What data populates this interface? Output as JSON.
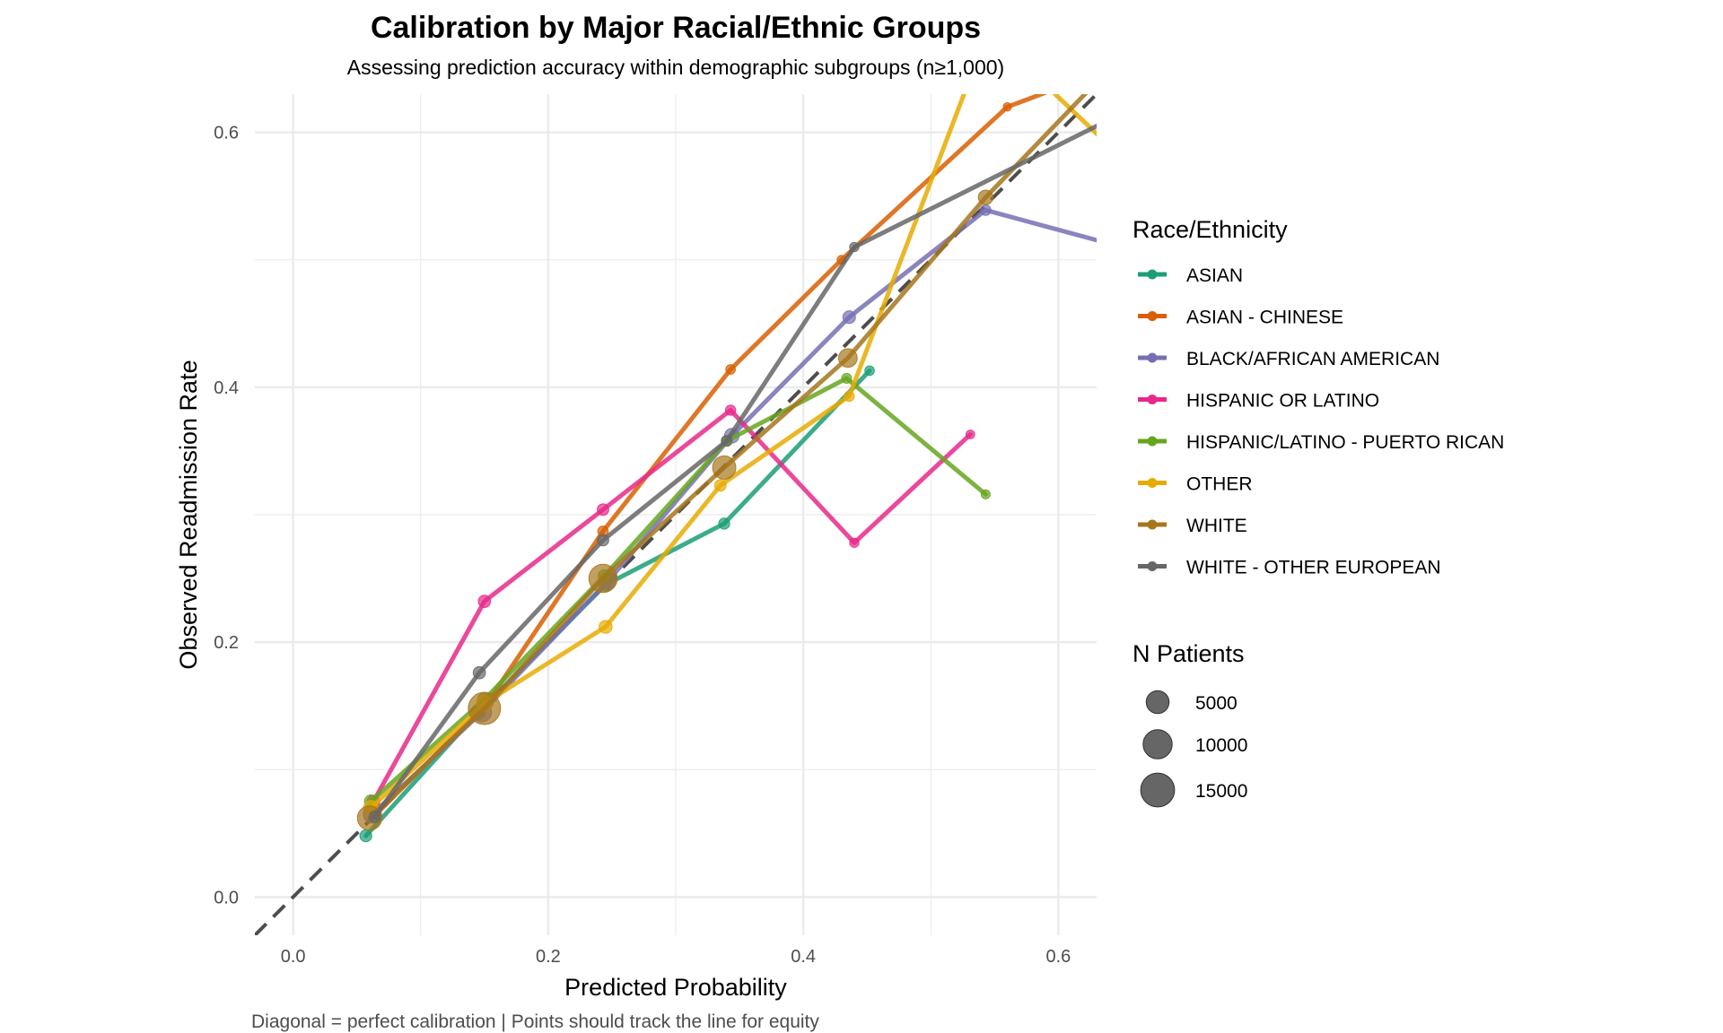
{
  "chart_data": {
    "type": "line",
    "title": "Calibration by Major Racial/Ethnic Groups",
    "subtitle": "Assessing prediction accuracy within demographic subgroups (n≥1,000)",
    "xlabel": "Predicted Probability",
    "ylabel": "Observed Readmission Rate",
    "caption": "Diagonal = perfect calibration | Points should track the line for equity",
    "xlim": [
      -0.03,
      0.63
    ],
    "ylim": [
      -0.03,
      0.63
    ],
    "x_ticks": [
      0.0,
      0.2,
      0.4,
      0.6
    ],
    "y_ticks": [
      0.0,
      0.2,
      0.4,
      0.6
    ],
    "x_tick_labels": [
      "0.0",
      "0.2",
      "0.4",
      "0.6"
    ],
    "y_tick_labels": [
      "0.0",
      "0.2",
      "0.4",
      "0.6"
    ],
    "grid": true,
    "reference_line": "diagonal y = x, dashed",
    "legend_color_title": "Race/Ethnicity",
    "legend_size_title": "N Patients",
    "legend_placement": "right",
    "size_legend": [
      {
        "label": "5000",
        "n": 5000
      },
      {
        "label": "10000",
        "n": 10000
      },
      {
        "label": "15000",
        "n": 15000
      }
    ],
    "series": [
      {
        "name": "ASIAN",
        "color": "#1b9e77",
        "points": [
          [
            0.057,
            0.048,
            600
          ],
          [
            0.145,
            0.145,
            1500
          ],
          [
            0.245,
            0.245,
            900
          ],
          [
            0.338,
            0.293,
            400
          ],
          [
            0.452,
            0.413,
            150
          ]
        ]
      },
      {
        "name": "ASIAN - CHINESE",
        "color": "#d95f02",
        "points": [
          [
            0.065,
            0.065,
            400
          ],
          [
            0.152,
            0.152,
            600
          ],
          [
            0.243,
            0.287,
            300
          ],
          [
            0.343,
            0.414,
            150
          ],
          [
            0.43,
            0.5,
            80
          ],
          [
            0.56,
            0.62,
            40
          ],
          [
            0.64,
            0.65,
            20
          ]
        ]
      },
      {
        "name": "BLACK/AFRICAN AMERICAN",
        "color": "#7570b3",
        "points": [
          [
            0.062,
            0.065,
            3000
          ],
          [
            0.148,
            0.145,
            4000
          ],
          [
            0.247,
            0.248,
            2500
          ],
          [
            0.344,
            0.362,
            1500
          ],
          [
            0.436,
            0.455,
            800
          ],
          [
            0.543,
            0.539,
            300
          ],
          [
            0.65,
            0.51,
            100
          ]
        ]
      },
      {
        "name": "HISPANIC OR LATINO",
        "color": "#e7298a",
        "points": [
          [
            0.063,
            0.075,
            800
          ],
          [
            0.15,
            0.232,
            700
          ],
          [
            0.243,
            0.304,
            500
          ],
          [
            0.343,
            0.382,
            250
          ],
          [
            0.44,
            0.278,
            120
          ],
          [
            0.531,
            0.363,
            60
          ]
        ]
      },
      {
        "name": "HISPANIC/LATINO - PUERTO RICAN",
        "color": "#66a61e",
        "points": [
          [
            0.061,
            0.075,
            900
          ],
          [
            0.15,
            0.155,
            1000
          ],
          [
            0.244,
            0.252,
            700
          ],
          [
            0.34,
            0.358,
            400
          ],
          [
            0.434,
            0.407,
            200
          ],
          [
            0.543,
            0.316,
            80
          ]
        ]
      },
      {
        "name": "OTHER",
        "color": "#e6ab02",
        "points": [
          [
            0.061,
            0.07,
            1500
          ],
          [
            0.15,
            0.152,
            2000
          ],
          [
            0.245,
            0.212,
            900
          ],
          [
            0.335,
            0.323,
            500
          ],
          [
            0.436,
            0.393,
            250
          ],
          [
            0.545,
            0.68,
            100
          ],
          [
            0.65,
            0.58,
            50
          ]
        ]
      },
      {
        "name": "WHITE",
        "color": "#a6761d",
        "points": [
          [
            0.06,
            0.062,
            8000
          ],
          [
            0.15,
            0.148,
            17000
          ],
          [
            0.243,
            0.25,
            12000
          ],
          [
            0.338,
            0.337,
            7000
          ],
          [
            0.435,
            0.423,
            3500
          ],
          [
            0.543,
            0.549,
            1500
          ],
          [
            0.64,
            0.65,
            500
          ]
        ]
      },
      {
        "name": "WHITE - OTHER EUROPEAN",
        "color": "#666666",
        "points": [
          [
            0.064,
            0.063,
            500
          ],
          [
            0.146,
            0.176,
            700
          ],
          [
            0.243,
            0.28,
            500
          ],
          [
            0.34,
            0.358,
            300
          ],
          [
            0.44,
            0.51,
            120
          ],
          [
            0.65,
            0.615,
            50
          ]
        ]
      }
    ]
  }
}
